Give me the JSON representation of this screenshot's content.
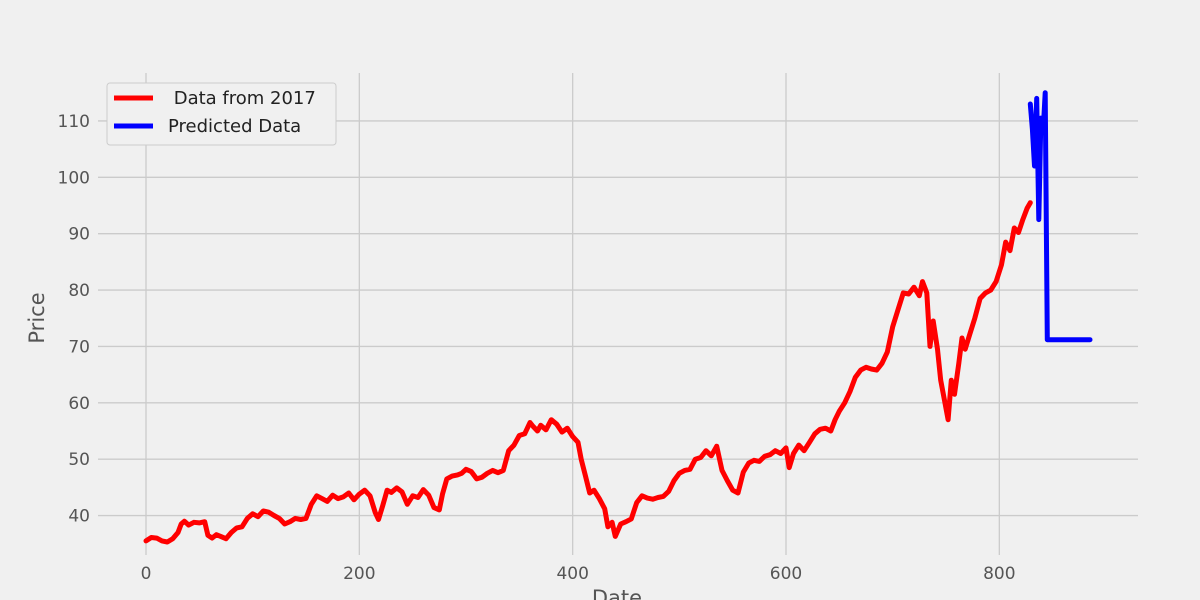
{
  "chart_data": {
    "type": "line",
    "xlabel": "Date",
    "ylabel": "Price",
    "xlim": [
      -45,
      930
    ],
    "ylim": [
      33,
      118.5
    ],
    "x_ticks": [
      0,
      200,
      400,
      600,
      800
    ],
    "y_ticks": [
      40,
      50,
      60,
      70,
      80,
      90,
      100,
      110
    ],
    "grid": true,
    "legend_position": "top-left",
    "series": [
      {
        "name": " Data from 2017",
        "color": "#ff0000",
        "points": [
          [
            0,
            35.5
          ],
          [
            5,
            36.1
          ],
          [
            10,
            36.0
          ],
          [
            15,
            35.5
          ],
          [
            20,
            35.3
          ],
          [
            25,
            35.9
          ],
          [
            30,
            37.0
          ],
          [
            33,
            38.5
          ],
          [
            36,
            39.0
          ],
          [
            40,
            38.3
          ],
          [
            45,
            38.8
          ],
          [
            50,
            38.7
          ],
          [
            55,
            38.9
          ],
          [
            58,
            36.5
          ],
          [
            62,
            36.0
          ],
          [
            66,
            36.6
          ],
          [
            70,
            36.3
          ],
          [
            75,
            35.9
          ],
          [
            80,
            37.0
          ],
          [
            85,
            37.8
          ],
          [
            90,
            38.0
          ],
          [
            95,
            39.5
          ],
          [
            100,
            40.3
          ],
          [
            105,
            39.8
          ],
          [
            110,
            40.8
          ],
          [
            115,
            40.6
          ],
          [
            120,
            40.0
          ],
          [
            125,
            39.5
          ],
          [
            130,
            38.5
          ],
          [
            135,
            38.9
          ],
          [
            140,
            39.5
          ],
          [
            145,
            39.3
          ],
          [
            150,
            39.5
          ],
          [
            155,
            42.0
          ],
          [
            160,
            43.5
          ],
          [
            165,
            43.0
          ],
          [
            170,
            42.5
          ],
          [
            175,
            43.6
          ],
          [
            180,
            43.0
          ],
          [
            185,
            43.3
          ],
          [
            190,
            44.0
          ],
          [
            195,
            42.8
          ],
          [
            200,
            43.8
          ],
          [
            205,
            44.5
          ],
          [
            210,
            43.5
          ],
          [
            215,
            40.5
          ],
          [
            218,
            39.3
          ],
          [
            222,
            41.8
          ],
          [
            226,
            44.5
          ],
          [
            230,
            44.1
          ],
          [
            235,
            44.9
          ],
          [
            240,
            44.2
          ],
          [
            245,
            42.0
          ],
          [
            250,
            43.5
          ],
          [
            255,
            43.2
          ],
          [
            260,
            44.6
          ],
          [
            265,
            43.6
          ],
          [
            270,
            41.4
          ],
          [
            275,
            41.0
          ],
          [
            278,
            43.8
          ],
          [
            282,
            46.5
          ],
          [
            287,
            47.0
          ],
          [
            292,
            47.2
          ],
          [
            296,
            47.5
          ],
          [
            300,
            48.2
          ],
          [
            305,
            47.8
          ],
          [
            310,
            46.5
          ],
          [
            315,
            46.8
          ],
          [
            320,
            47.5
          ],
          [
            325,
            48.0
          ],
          [
            330,
            47.6
          ],
          [
            335,
            48.0
          ],
          [
            340,
            51.5
          ],
          [
            345,
            52.5
          ],
          [
            350,
            54.2
          ],
          [
            355,
            54.5
          ],
          [
            360,
            56.5
          ],
          [
            363,
            55.8
          ],
          [
            367,
            55.0
          ],
          [
            370,
            56.0
          ],
          [
            375,
            55.2
          ],
          [
            380,
            57.0
          ],
          [
            385,
            56.2
          ],
          [
            390,
            54.8
          ],
          [
            395,
            55.5
          ],
          [
            400,
            54.0
          ],
          [
            405,
            53.0
          ],
          [
            408,
            50.0
          ],
          [
            412,
            47.0
          ],
          [
            416,
            44.0
          ],
          [
            420,
            44.5
          ],
          [
            425,
            43.0
          ],
          [
            430,
            41.2
          ],
          [
            433,
            38.0
          ],
          [
            437,
            38.8
          ],
          [
            440,
            36.3
          ],
          [
            445,
            38.5
          ],
          [
            450,
            38.9
          ],
          [
            455,
            39.4
          ],
          [
            460,
            42.3
          ],
          [
            465,
            43.5
          ],
          [
            470,
            43.1
          ],
          [
            475,
            42.9
          ],
          [
            480,
            43.2
          ],
          [
            485,
            43.4
          ],
          [
            490,
            44.3
          ],
          [
            495,
            46.2
          ],
          [
            500,
            47.5
          ],
          [
            505,
            48.0
          ],
          [
            510,
            48.2
          ],
          [
            515,
            50.0
          ],
          [
            520,
            50.3
          ],
          [
            525,
            51.5
          ],
          [
            530,
            50.6
          ],
          [
            535,
            52.3
          ],
          [
            540,
            48.0
          ],
          [
            545,
            46.2
          ],
          [
            550,
            44.5
          ],
          [
            555,
            44.0
          ],
          [
            560,
            47.7
          ],
          [
            565,
            49.3
          ],
          [
            570,
            49.8
          ],
          [
            575,
            49.6
          ],
          [
            580,
            50.5
          ],
          [
            585,
            50.8
          ],
          [
            590,
            51.5
          ],
          [
            595,
            51.0
          ],
          [
            600,
            52.0
          ],
          [
            603,
            48.5
          ],
          [
            607,
            51.0
          ],
          [
            612,
            52.5
          ],
          [
            617,
            51.5
          ],
          [
            622,
            53.0
          ],
          [
            627,
            54.5
          ],
          [
            632,
            55.3
          ],
          [
            637,
            55.5
          ],
          [
            642,
            55.0
          ],
          [
            646,
            57.0
          ],
          [
            650,
            58.5
          ],
          [
            655,
            60.0
          ],
          [
            660,
            62.0
          ],
          [
            665,
            64.5
          ],
          [
            670,
            65.8
          ],
          [
            675,
            66.3
          ],
          [
            680,
            66.0
          ],
          [
            685,
            65.8
          ],
          [
            690,
            67.0
          ],
          [
            695,
            69.0
          ],
          [
            700,
            73.5
          ],
          [
            705,
            76.5
          ],
          [
            710,
            79.5
          ],
          [
            715,
            79.3
          ],
          [
            720,
            80.5
          ],
          [
            725,
            79.0
          ],
          [
            728,
            81.5
          ],
          [
            732,
            79.5
          ],
          [
            735,
            70.0
          ],
          [
            738,
            74.5
          ],
          [
            742,
            69.5
          ],
          [
            745,
            64.0
          ],
          [
            748,
            61.0
          ],
          [
            752,
            57.0
          ],
          [
            755,
            64.0
          ],
          [
            758,
            61.5
          ],
          [
            762,
            67.0
          ],
          [
            765,
            71.5
          ],
          [
            768,
            69.5
          ],
          [
            772,
            72.0
          ],
          [
            777,
            75.0
          ],
          [
            782,
            78.5
          ],
          [
            787,
            79.5
          ],
          [
            792,
            80.0
          ],
          [
            797,
            81.5
          ],
          [
            802,
            84.5
          ],
          [
            806,
            88.5
          ],
          [
            810,
            87.0
          ],
          [
            814,
            91.0
          ],
          [
            818,
            90.2
          ],
          [
            822,
            92.5
          ],
          [
            826,
            94.5
          ],
          [
            829,
            95.5
          ]
        ]
      },
      {
        "name": "Predicted Data",
        "color": "#0000ff",
        "points": [
          [
            829,
            113.0
          ],
          [
            831,
            108.5
          ],
          [
            833,
            102.0
          ],
          [
            835,
            114.0
          ],
          [
            837,
            92.5
          ],
          [
            839,
            110.5
          ],
          [
            841,
            108.0
          ],
          [
            843,
            115.0
          ],
          [
            845,
            71.2
          ],
          [
            850,
            71.2
          ],
          [
            870,
            71.2
          ],
          [
            885,
            71.2
          ]
        ]
      }
    ]
  }
}
